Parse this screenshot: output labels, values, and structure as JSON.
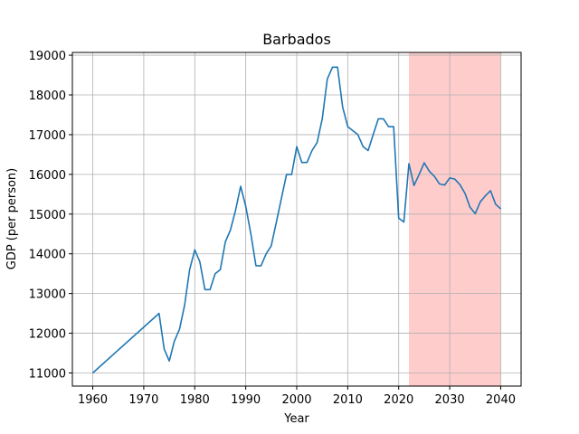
{
  "chart_data": {
    "type": "line",
    "title": "Barbados",
    "xlabel": "Year",
    "ylabel": "GDP (per person)",
    "xlim": [
      1956,
      2044
    ],
    "ylim": [
      10670,
      19070
    ],
    "xticks": [
      1960,
      1970,
      1980,
      1990,
      2000,
      2010,
      2020,
      2030,
      2040
    ],
    "yticks": [
      11000,
      12000,
      13000,
      14000,
      15000,
      16000,
      17000,
      18000,
      19000
    ],
    "grid": true,
    "highlight_span": {
      "x_start": 2022,
      "x_end": 2040,
      "color": "#ffcccc"
    },
    "series": [
      {
        "color": "#1f77b4",
        "x": [
          1960,
          1973,
          1974,
          1975,
          1976,
          1977,
          1978,
          1979,
          1980,
          1981,
          1982,
          1983,
          1984,
          1985,
          1986,
          1987,
          1988,
          1989,
          1990,
          1991,
          1992,
          1993,
          1994,
          1995,
          1996,
          1997,
          1998,
          1999,
          2000,
          2001,
          2002,
          2003,
          2004,
          2005,
          2006,
          2007,
          2008,
          2009,
          2010,
          2011,
          2012,
          2013,
          2014,
          2015,
          2016,
          2017,
          2018,
          2019,
          2020,
          2021,
          2022,
          2023,
          2024,
          2025,
          2026,
          2027,
          2028,
          2029,
          2030,
          2031,
          2032,
          2033,
          2034,
          2035,
          2036,
          2037,
          2038,
          2039,
          2040
        ],
        "y": [
          11000,
          12500,
          11600,
          11300,
          11800,
          12100,
          12700,
          13600,
          14100,
          13800,
          13100,
          13100,
          13500,
          13600,
          14300,
          14600,
          15100,
          15700,
          15200,
          14500,
          13700,
          13700,
          14000,
          14200,
          14800,
          15400,
          16000,
          16000,
          16700,
          16300,
          16300,
          16600,
          16800,
          17400,
          18400,
          18700,
          18700,
          17700,
          17200,
          17100,
          17000,
          16700,
          16600,
          17000,
          17400,
          17400,
          17200,
          17200,
          14900,
          14800,
          16270,
          15720,
          16000,
          16290,
          16080,
          15950,
          15760,
          15730,
          15910,
          15880,
          15740,
          15520,
          15170,
          15010,
          15310,
          15460,
          15590,
          15250,
          15130
        ]
      }
    ]
  }
}
